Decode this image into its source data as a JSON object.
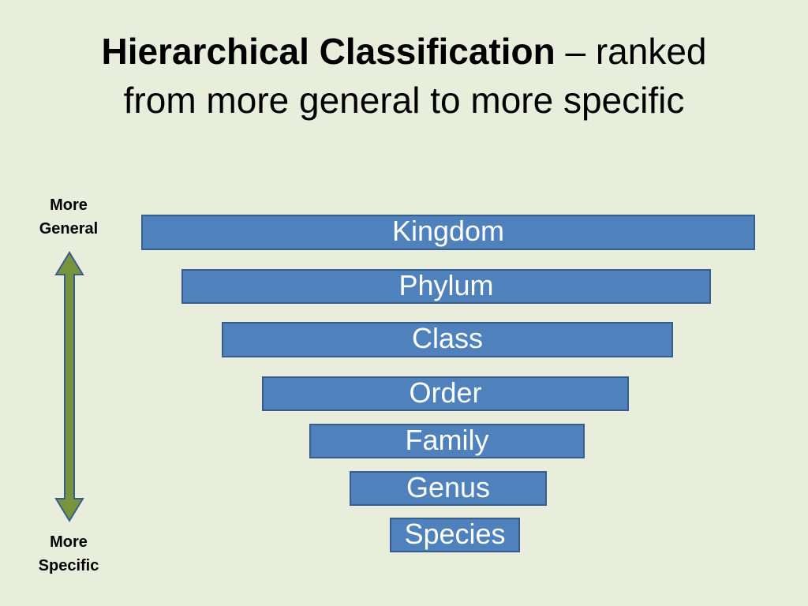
{
  "title": {
    "bold_text": "Hierarchical Classification",
    "rest_line1": " – ranked",
    "line2": "from more general to more specific"
  },
  "scale": {
    "top_label_line1": "More",
    "top_label_line2": "General",
    "bottom_label_line1": "More",
    "bottom_label_line2": "Specific",
    "arrow_color": "#77933c",
    "arrow_outline": "#385d8a"
  },
  "ranks": [
    "Kingdom",
    "Phylum",
    "Class",
    "Order",
    "Family",
    "Genus",
    "Species"
  ],
  "colors": {
    "background": "#e9eedc",
    "bar_fill": "#4f81bd",
    "bar_border": "#385d8a",
    "bar_text": "#ffffff"
  }
}
